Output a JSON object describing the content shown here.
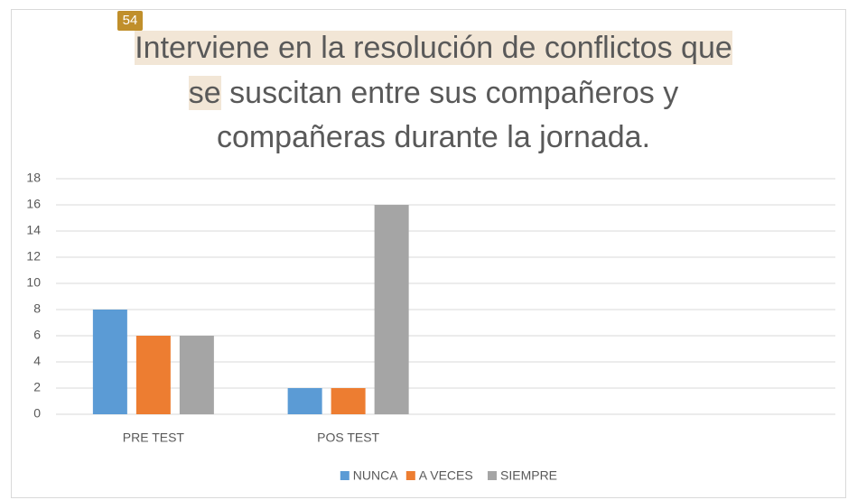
{
  "chart_data": {
    "type": "bar",
    "annotation": "54",
    "title_parts": [
      "Interviene en la resolución de conflictos que",
      "se",
      "suscitan entre sus compañeros y",
      "compañeras durante la jornada."
    ],
    "categories": [
      "PRE TEST",
      "POS TEST",
      null,
      null
    ],
    "series": [
      {
        "name": "NUNCA",
        "color": "#5b9bd5",
        "values": [
          8,
          2,
          null,
          null
        ]
      },
      {
        "name": "A VECES",
        "color": "#ed7d31",
        "values": [
          6,
          2,
          null,
          null
        ]
      },
      {
        "name": "SIEMPRE",
        "color": "#a5a5a5",
        "values": [
          6,
          16,
          null,
          null
        ]
      }
    ],
    "ylim": [
      0,
      18
    ],
    "yticks": [
      0,
      2,
      4,
      6,
      8,
      10,
      12,
      14,
      16,
      18
    ],
    "grid": true,
    "legend": "bottom"
  }
}
